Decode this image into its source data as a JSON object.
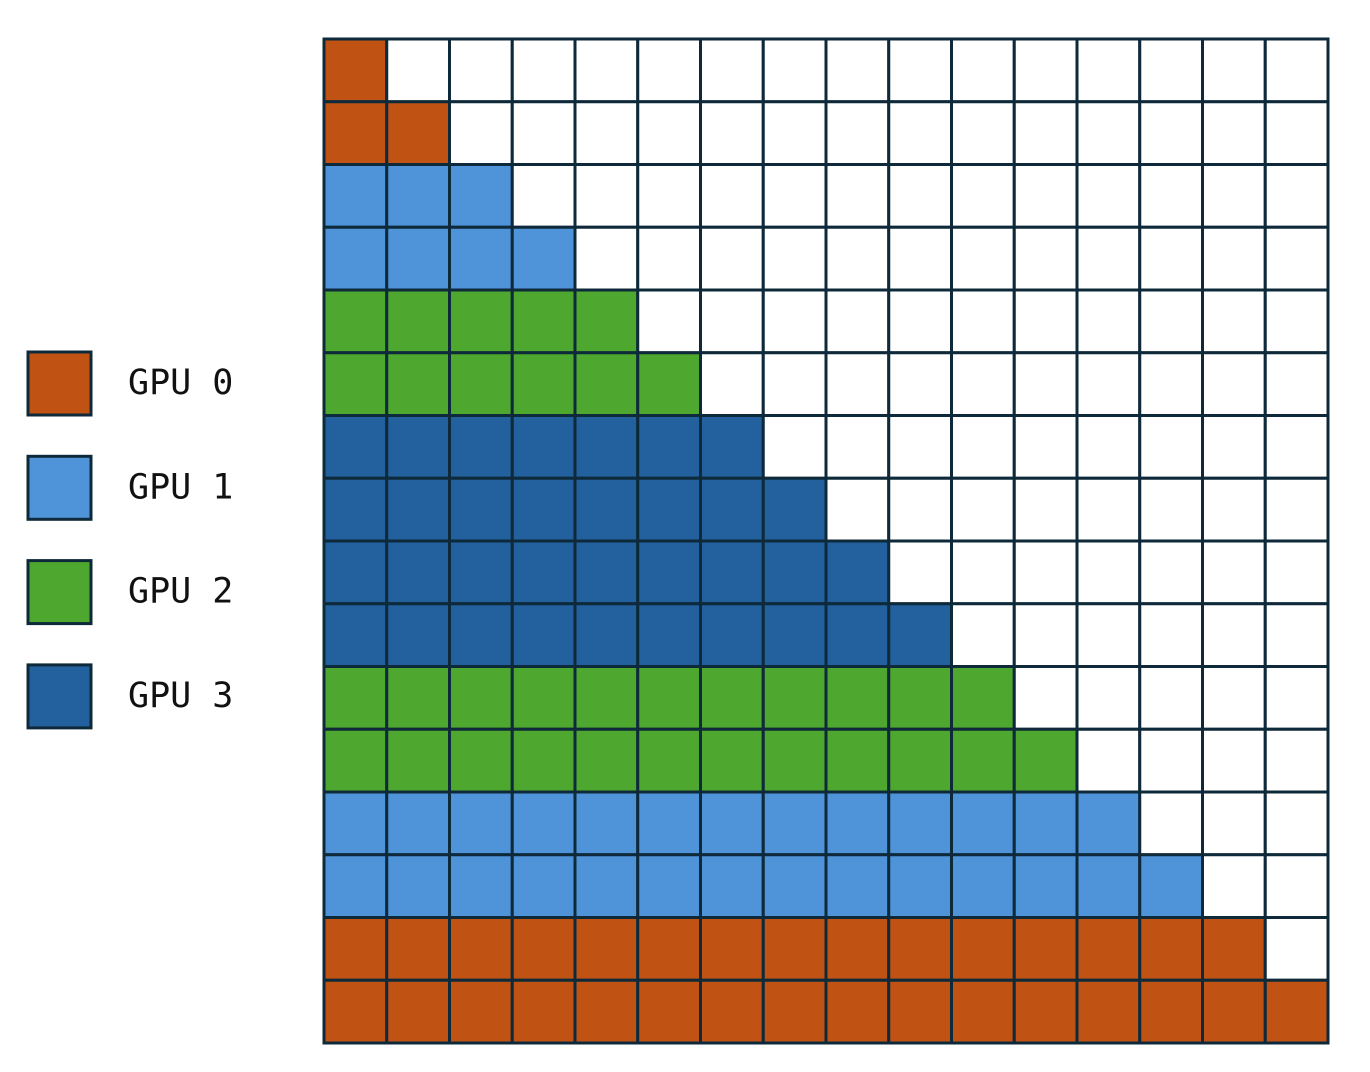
{
  "legend": [
    {
      "label": "GPU 0",
      "color": "#c05314"
    },
    {
      "label": "GPU 1",
      "color": "#4f94d9"
    },
    {
      "label": "GPU 2",
      "color": "#4ea72e"
    },
    {
      "label": "GPU 3",
      "color": "#22609e"
    }
  ],
  "rows": [
    0,
    0,
    1,
    1,
    2,
    2,
    3,
    3,
    3,
    3,
    2,
    2,
    1,
    1,
    0,
    0
  ]
}
